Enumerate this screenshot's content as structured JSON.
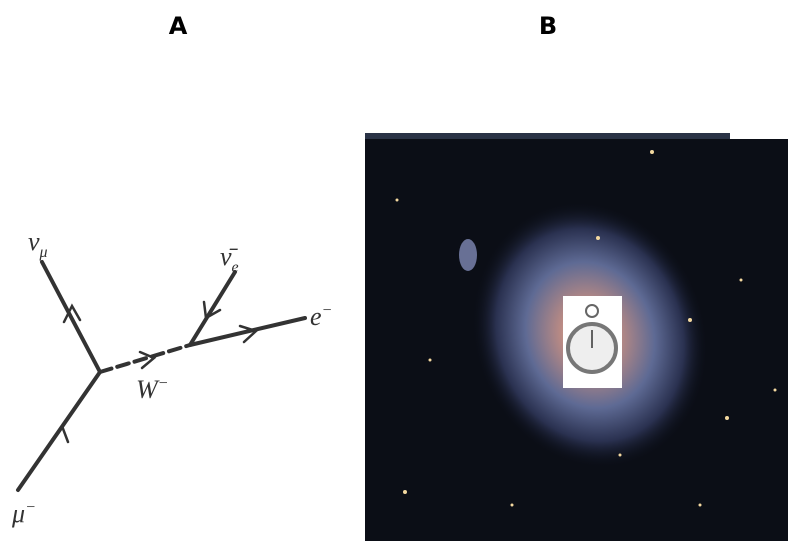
{
  "panels": [
    {
      "label": "A",
      "particles": [
        {
          "symbol": "ν",
          "index": "μ"
        },
        {
          "symbol": "ν̄",
          "index": "e"
        },
        {
          "symbol": "e",
          "charge": "−"
        },
        {
          "symbol": "W",
          "charge": "−"
        },
        {
          "symbol": "μ",
          "charge": "−"
        }
      ]
    },
    {
      "label": "B"
    }
  ]
}
